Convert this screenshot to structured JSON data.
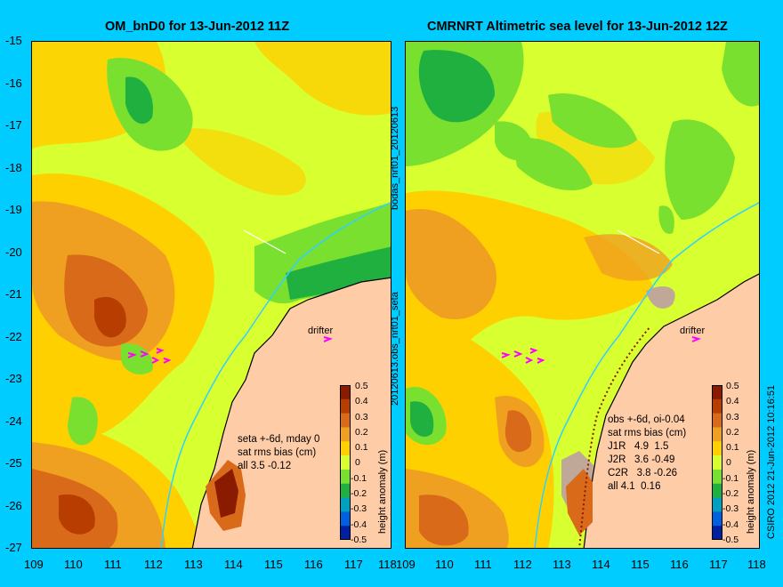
{
  "left_title": "OM_bnD0 for 13-Jun-2012 11Z",
  "right_title": "CMRNRT Altimetric sea level  for 13-Jun-2012 12Z",
  "y_ticks": [
    "-15",
    "-16",
    "-17",
    "-18",
    "-19",
    "-20",
    "-21",
    "-22",
    "-23",
    "-24",
    "-25",
    "-26",
    "-27"
  ],
  "left_x_ticks": [
    "109",
    "110",
    "111",
    "112",
    "113",
    "114",
    "115",
    "116",
    "117",
    "118"
  ],
  "right_x_ticks": [
    "109",
    "110",
    "111",
    "112",
    "113",
    "114",
    "115",
    "116",
    "117",
    "118"
  ],
  "colorbar": {
    "label": "height anomaly (m)",
    "ticks": [
      "0.5",
      "0.4",
      "0.3",
      "0.2",
      "0.1",
      "0",
      "-0.1",
      "-0.2",
      "-0.3",
      "-0.4",
      "-0.5"
    ],
    "colors": [
      "#8a1a00",
      "#b83d00",
      "#d86a1a",
      "#f0a020",
      "#ffd000",
      "#d8ff30",
      "#7ae030",
      "#20b040",
      "#00a0c0",
      "#0060e0",
      "#0020a0"
    ]
  },
  "left_annotation": "seta +-6d, mday 0\nsat rms bias (cm)\nall 3.5 -0.12",
  "right_annotation": "obs +-6d, oi-0.04\nsat rms bias (cm)\nJ1R   4.9  1.5\nJ2R   3.6 -0.49\nC2R   3.8 -0.26\nall 4.1  0.16",
  "drifter_label": "drifter",
  "side_labels": {
    "middle_top": "bodas_nrt01_20120613",
    "middle_bottom": "20120613.obs_nrt01_seta",
    "right_edge": "CSIRO 2012  21-Jun-2012 10:16:51"
  },
  "colors": {
    "background": "#00ccff",
    "land": "#ffcca8",
    "sea_base": "#d8ff30",
    "coastline": "#000000",
    "isobath": "#30d0ff"
  }
}
